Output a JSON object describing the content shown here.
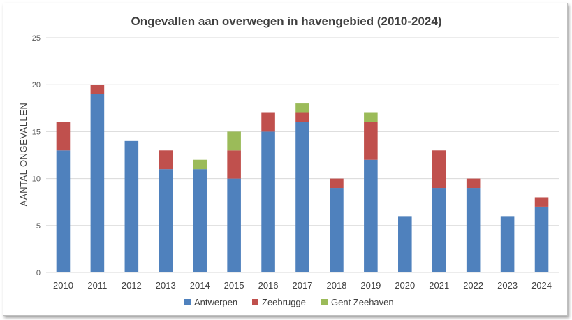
{
  "chart_data": {
    "type": "bar",
    "stacked": true,
    "title": "Ongevallen aan overwegen in havengebied (2010-2024)",
    "xlabel": "",
    "ylabel": "AANTAL ONGEVALLEN",
    "ylim": [
      0,
      25
    ],
    "yticks": [
      "0",
      "5",
      "10",
      "15",
      "20",
      "25"
    ],
    "grid": true,
    "legend_position": "bottom",
    "categories": [
      "2010",
      "2011",
      "2012",
      "2013",
      "2014",
      "2015",
      "2016",
      "2017",
      "2018",
      "2019",
      "2020",
      "2021",
      "2022",
      "2023",
      "2024"
    ],
    "series": [
      {
        "name": "Antwerpen",
        "color": "#4f81bd",
        "values": [
          13,
          19,
          14,
          11,
          11,
          10,
          15,
          16,
          9,
          12,
          6,
          9,
          9,
          6,
          7
        ]
      },
      {
        "name": "Zeebrugge",
        "color": "#c0504d",
        "values": [
          3,
          1,
          0,
          2,
          0,
          3,
          2,
          1,
          1,
          4,
          0,
          4,
          1,
          0,
          1
        ]
      },
      {
        "name": "Gent Zeehaven",
        "color": "#9bbb59",
        "values": [
          0,
          0,
          0,
          0,
          1,
          2,
          0,
          1,
          0,
          1,
          0,
          0,
          0,
          0,
          0
        ]
      }
    ]
  }
}
